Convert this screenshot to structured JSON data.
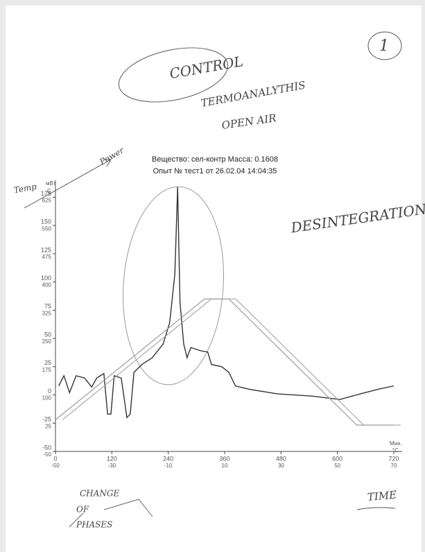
{
  "chart_data": {
    "type": "line",
    "title": "Вещество: сел-контр Масса: 0.1608",
    "subtitle": "Опыт № тест1 от 26.02.04 14:04:35",
    "y_label": "мВт",
    "y2_label": "C",
    "x_label": "Мин.",
    "x2_label": "°C",
    "annotations": [
      "1",
      "CONTROL",
      "TERMOANALYTHIS",
      "OPEN AIR",
      "Temp",
      "Power",
      "DESINTEGRATION",
      "CHANGE",
      "OF",
      "PHASES",
      "TIME"
    ],
    "xlim": [
      0,
      720
    ],
    "xticks": [
      0,
      120,
      240,
      360,
      480,
      600,
      720
    ],
    "x2lim": [
      -50,
      70
    ],
    "x2ticks": [
      -50,
      -30,
      -10,
      10,
      30,
      50,
      70
    ],
    "ylim": [
      -50,
      190
    ],
    "yticks": [
      -50,
      -25,
      0,
      25,
      50,
      75,
      100,
      125,
      150,
      175
    ],
    "y2lim": [
      -50,
      670
    ],
    "y2ticks": [
      -50,
      25,
      100,
      175,
      250,
      325,
      400,
      475,
      550,
      625
    ],
    "series": [
      {
        "color": "#333333",
        "x": [
          7,
          18,
          30,
          44,
          62,
          77,
          88,
          103,
          111,
          118,
          125,
          140,
          152,
          159,
          167,
          184,
          206,
          229,
          243,
          254,
          260,
          265,
          273,
          280,
          288,
          310,
          324,
          332,
          354,
          369,
          383,
          413,
          472,
          546,
          605,
          649,
          686,
          720
        ],
        "values": [
          8,
          17,
          2,
          17,
          15,
          7,
          15,
          19,
          -17,
          -17,
          17,
          15,
          -20,
          -17,
          20,
          27,
          33,
          45,
          64,
          107,
          184,
          82,
          45,
          33,
          42,
          39,
          38,
          27,
          25,
          20,
          8,
          5,
          1,
          -1,
          -4,
          1,
          5,
          8
        ]
      },
      {
        "color": "#9a9a9a",
        "axis": "y2",
        "x": [
          0,
          317,
          369,
          641,
          720
        ],
        "values": [
          34,
          355,
          355,
          20,
          20
        ]
      }
    ]
  }
}
